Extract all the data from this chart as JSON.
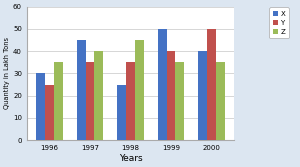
{
  "years": [
    "1996",
    "1997",
    "1998",
    "1999",
    "2000"
  ],
  "X": [
    30,
    45,
    25,
    50,
    40
  ],
  "Y": [
    25,
    35,
    35,
    40,
    50
  ],
  "Z": [
    35,
    40,
    45,
    35,
    35
  ],
  "bar_colors": [
    "#4472c4",
    "#c0504d",
    "#9bbb59"
  ],
  "legend_labels": [
    "X",
    "Y",
    "Z"
  ],
  "xlabel": "Years",
  "ylabel": "Quantity in Lakh Tons",
  "ylim": [
    0,
    60
  ],
  "yticks": [
    0,
    10,
    20,
    30,
    40,
    50,
    60
  ],
  "bar_width": 0.22,
  "grid_color": "#d0d0d0",
  "plot_bg_color": "#ffffff",
  "fig_bg_color": "#dce6f1"
}
